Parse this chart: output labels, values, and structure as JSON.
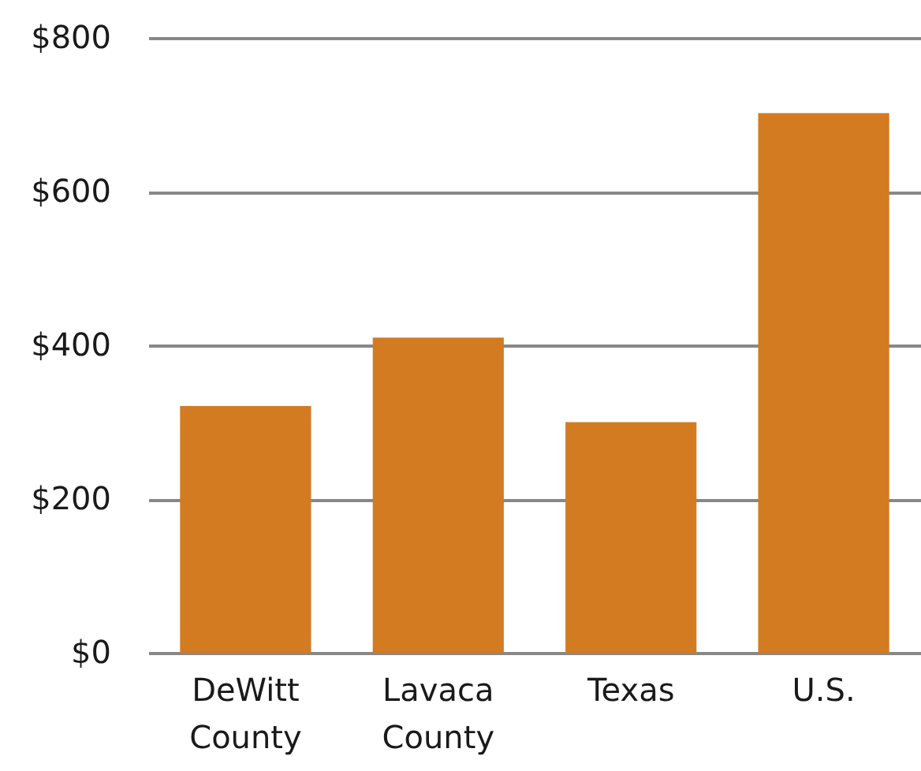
{
  "chart_data": {
    "type": "bar",
    "categories": [
      "DeWitt County",
      "Lavaca County",
      "Texas",
      "U.S."
    ],
    "values": [
      321,
      410,
      300,
      702
    ],
    "color": "#d37b20",
    "ylim": [
      0,
      800
    ],
    "yticks": [
      {
        "value": 0,
        "label": "$0"
      },
      {
        "value": 200,
        "label": "$200"
      },
      {
        "value": 400,
        "label": "$400"
      },
      {
        "value": 600,
        "label": "$600"
      },
      {
        "value": 800,
        "label": "$800"
      }
    ],
    "grid": "y"
  }
}
